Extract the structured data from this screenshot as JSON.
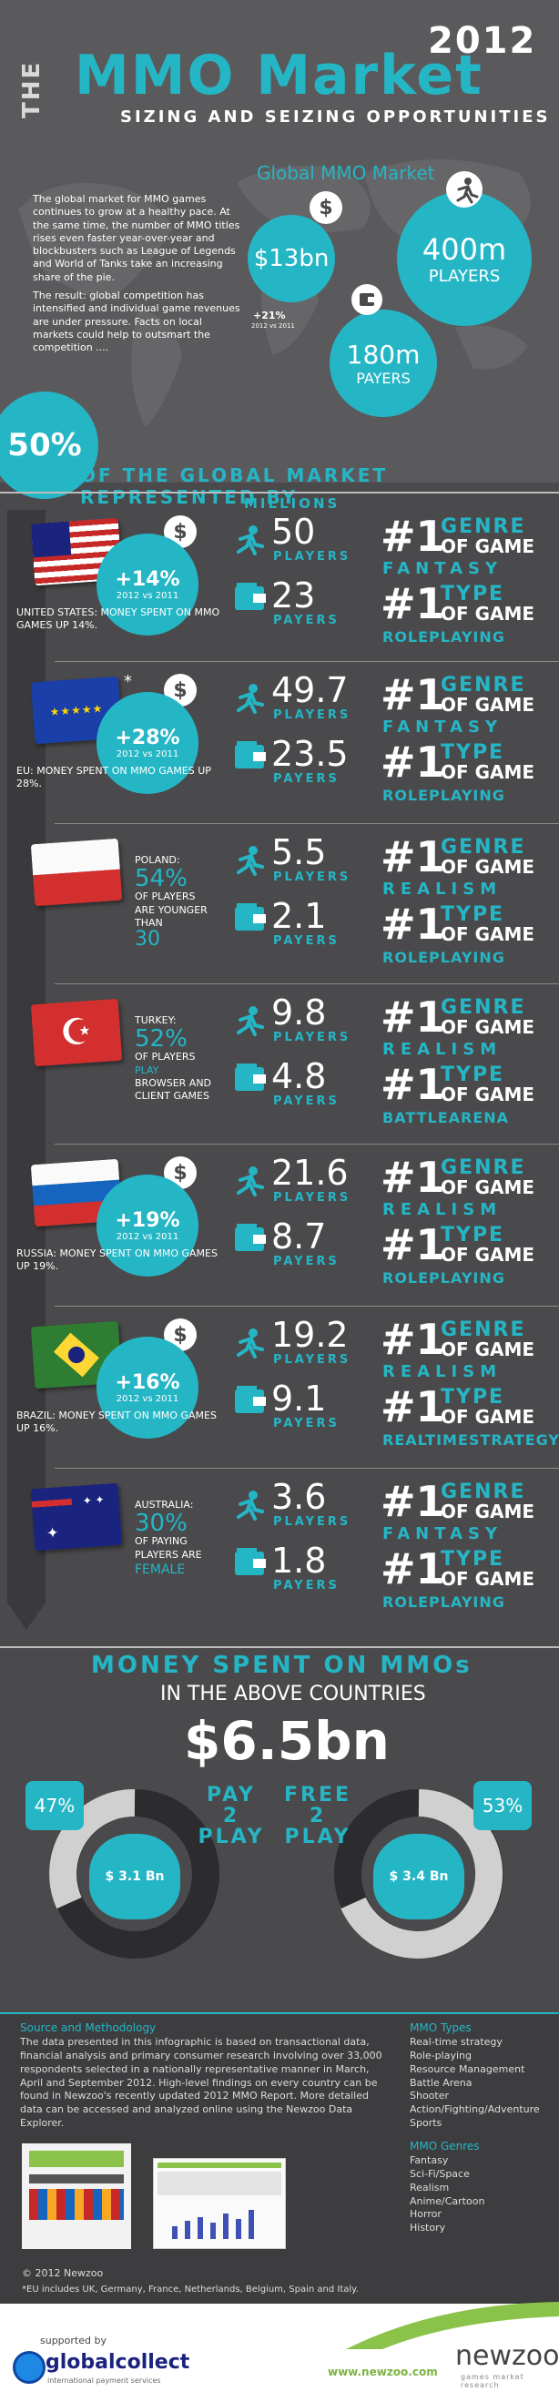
{
  "header": {
    "the": "THE",
    "year": "2012",
    "title": "MMO Market",
    "subtitle": "SIZING AND SEIZING OPPORTUNITIES"
  },
  "intro": {
    "p1": "The global market for MMO games continues to grow at a healthy pace. At the same time, the number of MMO titles rises even faster year-over-year and blockbusters such as League of Legends and World of Tanks take an increasing share of the pie.",
    "p2": "The result: global competition has intensified and individual game revenues are under pressure. Facts on local markets could help to outsmart the competition ...."
  },
  "global": {
    "heading": "Global MMO Market",
    "revenue": "$13bn",
    "growth": "+21%",
    "growth_note": "2012 vs 2011",
    "players_num": "400m",
    "players_label": "PLAYERS",
    "payers_num": "180m",
    "payers_label": "PAYERS"
  },
  "share": {
    "pct": "50%",
    "label": "OF THE GLOBAL MARKET REPRESENTED BY"
  },
  "col_header": "MILLIONS",
  "countries": [
    {
      "growth": "+14%",
      "growth_note": "2012 vs 2011",
      "note": "UNITED STATES: MONEY SPENT ON MMO GAMES UP 14%.",
      "players": "50",
      "payers": "23",
      "genre": "FANTASY",
      "type": "ROLEPLAYING"
    },
    {
      "growth": "+28%",
      "growth_note": "2012 vs 2011",
      "note": "EU: MONEY SPENT ON MMO GAMES UP 28%.",
      "players": "49.7",
      "payers": "23.5",
      "genre": "FANTASY",
      "type": "ROLEPLAYING",
      "star": "*"
    },
    {
      "name": "POLAND:",
      "big": "54%",
      "line1": "OF PLAYERS",
      "line2": "ARE YOUNGER",
      "line3": "THAN",
      "big2": "30",
      "players": "5.5",
      "payers": "2.1",
      "genre": "REALISM",
      "type": "ROLEPLAYING"
    },
    {
      "name": "TURKEY:",
      "big": "52%",
      "line1": "OF PLAYERS",
      "line2": "PLAY",
      "line3": "BROWSER AND",
      "line4": "CLIENT GAMES",
      "players": "9.8",
      "payers": "4.8",
      "genre": "REALISM",
      "type": "BATTLEARENA"
    },
    {
      "growth": "+19%",
      "growth_note": "2012 vs 2011",
      "note": "RUSSIA: MONEY SPENT ON MMO GAMES UP 19%.",
      "players": "21.6",
      "payers": "8.7",
      "genre": "REALISM",
      "type": "ROLEPLAYING"
    },
    {
      "growth": "+16%",
      "growth_note": "2012 vs 2011",
      "note": "BRAZIL: MONEY SPENT ON MMO GAMES UP 16%.",
      "players": "19.2",
      "payers": "9.1",
      "genre": "REALISM",
      "type": "REALTIMESTRATEGY"
    },
    {
      "name": "AUSTRALIA:",
      "big": "30%",
      "line1": "OF PAYING",
      "line2": "PLAYERS ARE",
      "line3": "FEMALE",
      "players": "3.6",
      "payers": "1.8",
      "genre": "FANTASY",
      "type": "ROLEPLAYING"
    }
  ],
  "labels": {
    "players": "PLAYERS",
    "payers": "PAYERS",
    "rank": "#1",
    "genre_w": "GENRE",
    "type_w": "TYPE",
    "of_game": "OF GAME",
    "dollar": "$"
  },
  "money": {
    "title": "MONEY SPENT ON MMOs",
    "subtitle": "IN THE ABOVE COUNTRIES",
    "total": "$6.5bn",
    "p2p_pct": "47%",
    "p2p_label": [
      "PAY",
      "2",
      "PLAY"
    ],
    "p2p_value": "$ 3.1 Bn",
    "f2p_pct": "53%",
    "f2p_label": [
      "FREE",
      "2",
      "PLAY"
    ],
    "f2p_value": "$ 3.4 Bn"
  },
  "footer": {
    "src_title": "Source and Methodology",
    "src_text": "The data presented in this infographic is based on transactional data, financial analysis and primary consumer research involving over 33,000 respondents selected in a nationally representative manner in March, April and September 2012. High-level findings on every country can be found in Newzoo's recently updated 2012 MMO Report. More detailed data can be accessed and analyzed online using the Newzoo Data Explorer.",
    "types_title": "MMO Types",
    "types": [
      "Real-time strategy",
      "Role-playing",
      "Resource Management",
      "Battle Arena",
      "Shooter",
      "Action/Fighting/Adventure",
      "Sports"
    ],
    "genres_title": "MMO Genres",
    "genres": [
      "Fantasy",
      "Sci-Fi/Space",
      "Realism",
      "Anime/Cartoon",
      "Horror",
      "History"
    ],
    "copyright": "© 2012 Newzoo",
    "eu_note": "*EU includes UK, Germany, France, Netherlands, Belgium, Spain and Italy.",
    "supported": "supported by",
    "sponsor": "globalcollect",
    "sponsor_tag": "international payment services",
    "url": "www.newzoo.com",
    "brand": "newzoo",
    "brand_tag": "games market research"
  }
}
